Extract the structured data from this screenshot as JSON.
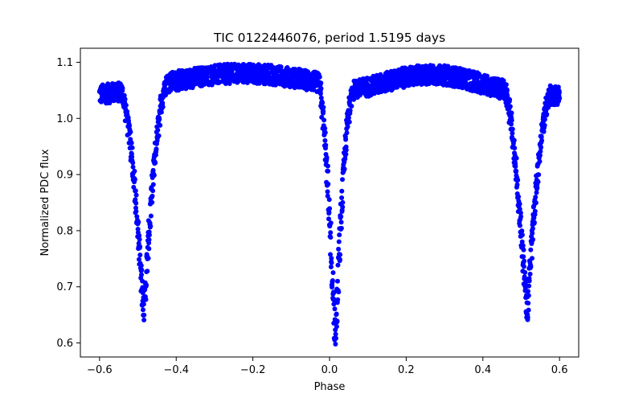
{
  "chart_data": {
    "type": "scatter",
    "title": "TIC 0122446076, period 1.5195 days",
    "xlabel": "Phase",
    "ylabel": "Normalized PDC flux",
    "xlim": [
      -0.65,
      0.65
    ],
    "ylim": [
      0.575,
      1.125
    ],
    "x_ticks": [
      -0.6,
      -0.4,
      -0.2,
      0.0,
      0.2,
      0.4,
      0.6
    ],
    "x_tick_labels": [
      "−0.6",
      "−0.4",
      "−0.2",
      "0.0",
      "0.2",
      "0.4",
      "0.6"
    ],
    "y_ticks": [
      0.6,
      0.7,
      0.8,
      0.9,
      1.0,
      1.1
    ],
    "y_tick_labels": [
      "0.6",
      "0.7",
      "0.8",
      "0.9",
      "1.0",
      "1.1"
    ],
    "grid": false,
    "marker_color": "#0000ff",
    "x_range": [
      -0.6,
      0.6
    ],
    "primary_eclipse": {
      "phase": 0.015,
      "depth_min": 0.59,
      "half_width": 0.045
    },
    "secondary_eclipse": {
      "phases": [
        -0.485,
        0.515
      ],
      "depth_min": 0.64,
      "half_width": 0.06
    },
    "out_of_eclipse": {
      "phase_range_1": [
        -0.42,
        -0.05
      ],
      "flux_range_1": [
        1.03,
        1.1
      ],
      "phase_range_2": [
        0.08,
        0.44
      ],
      "flux_range_2": [
        1.04,
        1.09
      ]
    },
    "series": [
      {
        "values_summary": [
          {
            "x": -0.6,
            "y": 1.06
          },
          {
            "x": -0.55,
            "y": 1.04
          },
          {
            "x": -0.5,
            "y": 0.72
          },
          {
            "x": -0.485,
            "y": 0.64
          },
          {
            "x": -0.45,
            "y": 0.92
          },
          {
            "x": -0.42,
            "y": 1.06
          },
          {
            "x": -0.25,
            "y": 1.08
          },
          {
            "x": -0.05,
            "y": 1.04
          },
          {
            "x": 0.015,
            "y": 0.59
          },
          {
            "x": 0.07,
            "y": 1.04
          },
          {
            "x": 0.27,
            "y": 1.07
          },
          {
            "x": 0.44,
            "y": 1.05
          },
          {
            "x": 0.515,
            "y": 0.64
          },
          {
            "x": 0.58,
            "y": 1.03
          },
          {
            "x": 0.6,
            "y": 1.06
          }
        ]
      }
    ]
  }
}
